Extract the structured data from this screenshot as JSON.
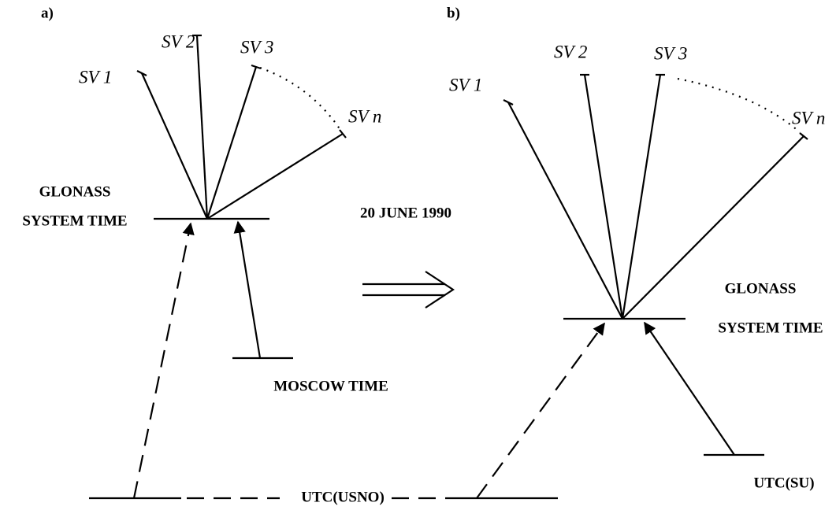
{
  "panels": [
    {
      "label": "a)",
      "satellites": [
        "SV 1",
        "SV 2",
        "SV 3",
        "SV n"
      ],
      "system_time": [
        "GLONASS",
        "SYSTEM TIME"
      ],
      "reference": "MOSCOW TIME"
    },
    {
      "label": "b)",
      "satellites": [
        "SV 1",
        "SV 2",
        "SV 3",
        "SV n"
      ],
      "system_time": [
        "GLONASS",
        "SYSTEM TIME"
      ],
      "reference": "UTC(SU)"
    }
  ],
  "date": "20 JUNE 1990",
  "common_reference": "UTC(USNO)"
}
